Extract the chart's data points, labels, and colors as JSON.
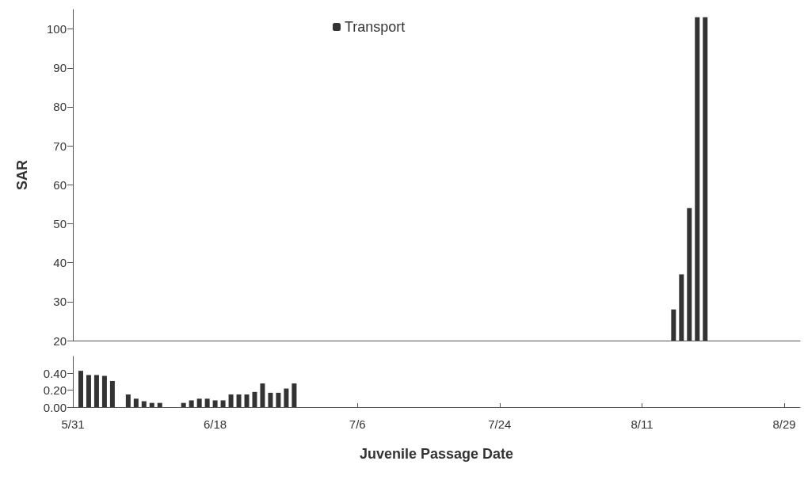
{
  "chart_data": [
    {
      "type": "bar",
      "ylabel": "SAR",
      "legend": "top",
      "tick_labels": "y",
      "grid": false,
      "series": [
        {
          "name": "Transport",
          "color": "#333333",
          "x": [
            "--08-15",
            "--08-16",
            "--08-17",
            "--08-18",
            "--08-19"
          ],
          "values": [
            28,
            37,
            54,
            103,
            103
          ]
        }
      ],
      "xlim": [
        "--05-31",
        "--08-31"
      ],
      "xticks": [
        {
          "value": "--05-31",
          "label": "5/31"
        },
        {
          "value": "--06-18",
          "label": "6/18"
        },
        {
          "value": "--07-06",
          "label": "7/6"
        },
        {
          "value": "--07-24",
          "label": "7/24"
        },
        {
          "value": "--08-11",
          "label": "8/11"
        },
        {
          "value": "--08-29",
          "label": "8/29"
        }
      ],
      "ylim": [
        20,
        105
      ],
      "yticks": [
        20,
        30,
        40,
        50,
        60,
        70,
        80,
        90,
        100
      ]
    },
    {
      "type": "bar",
      "xlabel": "Juvenile Passage Date",
      "grid": false,
      "x": [
        "--06-01",
        "--06-02",
        "--06-03",
        "--06-04",
        "--06-05",
        "--06-07",
        "--06-08",
        "--06-09",
        "--06-10",
        "--06-11",
        "--06-14",
        "--06-15",
        "--06-16",
        "--06-17",
        "--06-18",
        "--06-19",
        "--06-20",
        "--06-21",
        "--06-22",
        "--06-23",
        "--06-24",
        "--06-25",
        "--06-26",
        "--06-27",
        "--06-28"
      ],
      "series": [
        {
          "color": "#333333",
          "values": [
            0.43,
            0.38,
            0.38,
            0.37,
            0.31,
            0.15,
            0.1,
            0.07,
            0.05,
            0.05,
            0.05,
            0.08,
            0.1,
            0.1,
            0.08,
            0.08,
            0.15,
            0.15,
            0.15,
            0.18,
            0.28,
            0.17,
            0.17,
            0.22,
            0.28
          ]
        }
      ],
      "xlim": [
        "--05-31",
        "--08-31"
      ],
      "xticks": [
        {
          "value": "--05-31",
          "label": "5/31"
        },
        {
          "value": "--06-18",
          "label": "6/18"
        },
        {
          "value": "--07-06",
          "label": "7/6"
        },
        {
          "value": "--07-24",
          "label": "7/24"
        },
        {
          "value": "--08-11",
          "label": "8/11"
        },
        {
          "value": "--08-29",
          "label": "8/29"
        }
      ],
      "ylim": [
        0,
        0.6
      ],
      "yticks": [
        {
          "value": 0,
          "label": "0.00"
        },
        {
          "value": 0.2,
          "label": "0.20"
        },
        {
          "value": 0.4,
          "label": "0.40"
        }
      ]
    }
  ]
}
